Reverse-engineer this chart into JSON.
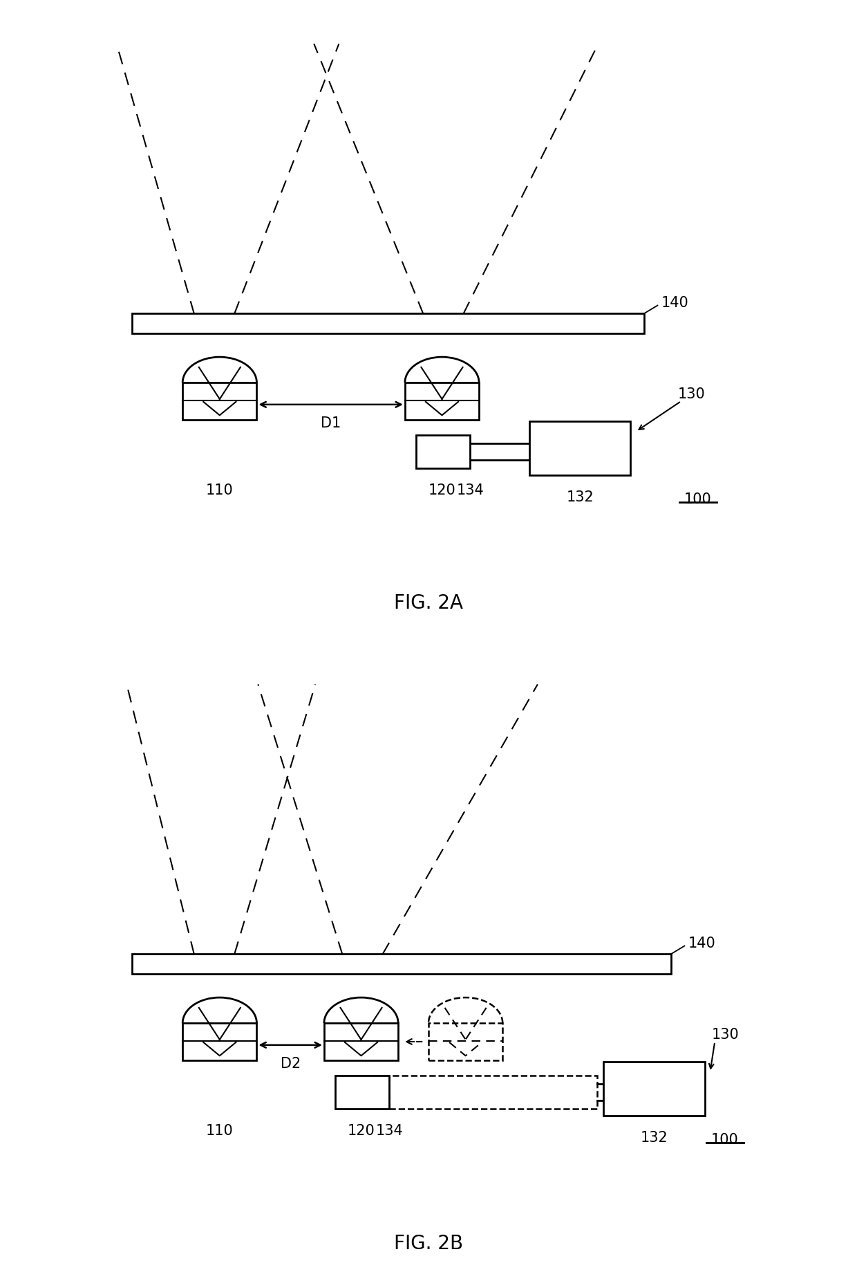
{
  "fig_width": 12.4,
  "fig_height": 18.52,
  "background_color": "#ffffff",
  "line_color": "#000000",
  "fig2a_title": "FIG. 2A",
  "fig2b_title": "FIG. 2B"
}
